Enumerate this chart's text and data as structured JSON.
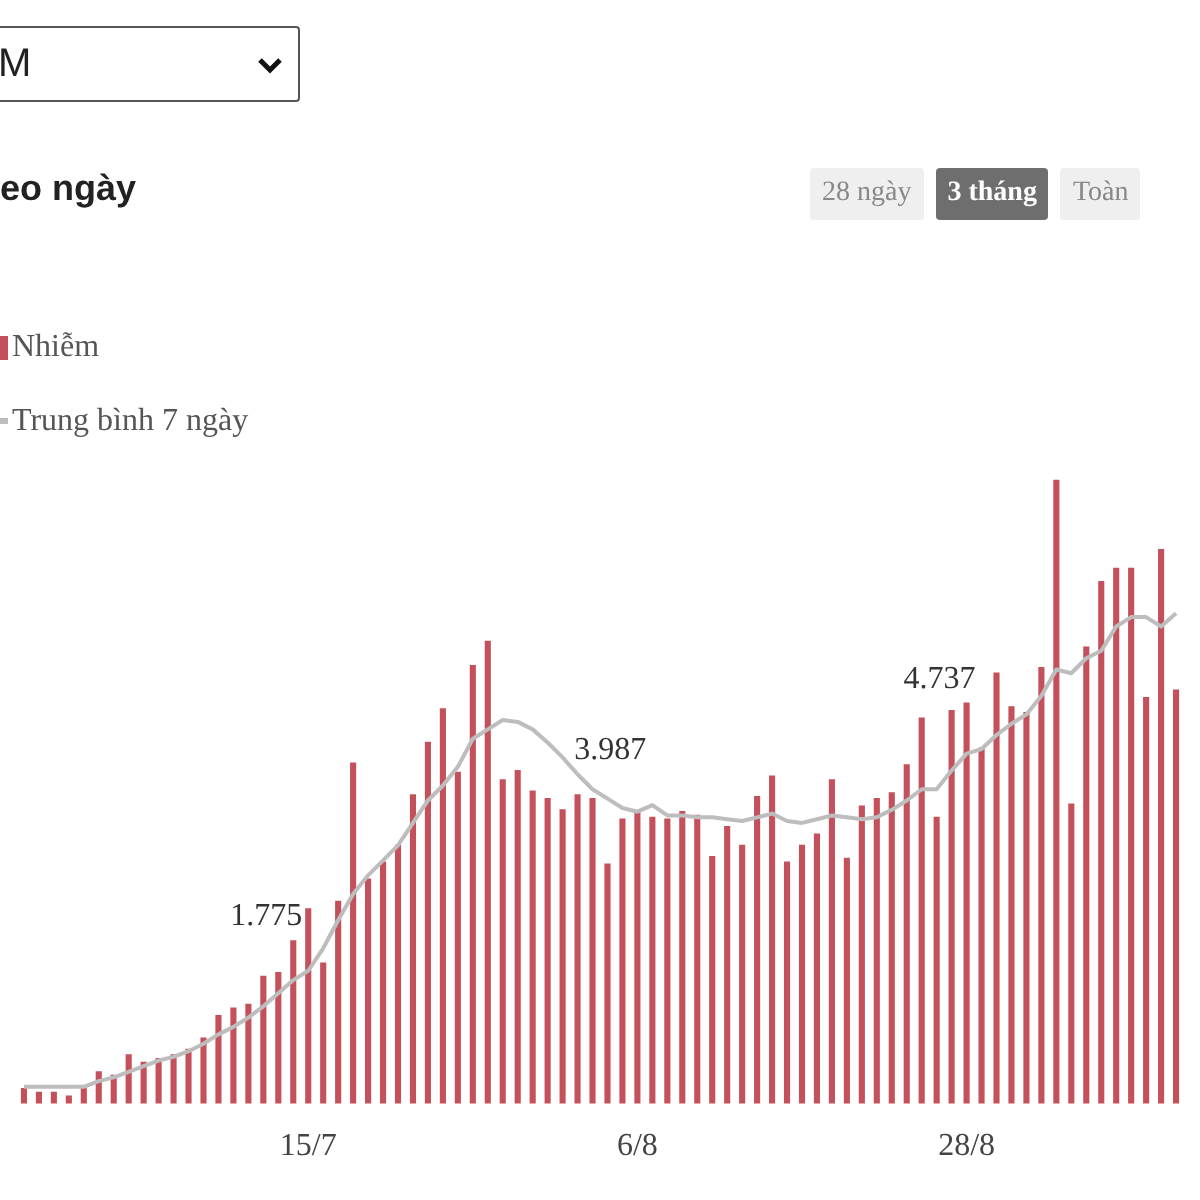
{
  "chart_data": {
    "type": "bar",
    "title": "eo ngày",
    "categories": [
      null,
      null,
      null,
      null,
      null,
      null,
      null,
      null,
      null,
      null,
      null,
      null,
      null,
      null,
      null,
      null,
      null,
      null,
      null,
      "15/7",
      null,
      null,
      null,
      null,
      null,
      null,
      null,
      null,
      null,
      null,
      null,
      null,
      null,
      null,
      null,
      null,
      null,
      null,
      null,
      null,
      null,
      "6/8",
      null,
      null,
      null,
      null,
      null,
      null,
      null,
      null,
      null,
      null,
      null,
      null,
      null,
      null,
      null,
      null,
      null,
      null,
      null,
      null,
      null,
      "28/8",
      null,
      null,
      null,
      null,
      null,
      null,
      null,
      null,
      null,
      null,
      null,
      null,
      null,
      null
    ],
    "series": [
      {
        "name": "Nhiễm",
        "type": "bar",
        "color": "#c4505c",
        "values": [
          200,
          150,
          150,
          100,
          200,
          425,
          375,
          650,
          550,
          600,
          650,
          725,
          875,
          1175,
          1275,
          1325,
          1700,
          1750,
          2175,
          2600,
          1875,
          2700,
          4550,
          3000,
          3225,
          3450,
          4125,
          4825,
          5275,
          4425,
          5850,
          6175,
          4325,
          4450,
          4175,
          4075,
          3925,
          4125,
          4075,
          3200,
          3800,
          3900,
          3825,
          3800,
          3900,
          3850,
          3300,
          3700,
          3450,
          4100,
          4375,
          3225,
          3450,
          3600,
          4325,
          3275,
          3975,
          4075,
          4150,
          4525,
          5150,
          3825,
          5250,
          5350,
          4750,
          5750,
          5300,
          5225,
          5825,
          8325,
          4000,
          6100,
          6975,
          7150,
          7150,
          5425,
          7400,
          5525
        ]
      },
      {
        "name": "Trung bình 7 ngày",
        "type": "line",
        "color": "#bdbdbd",
        "values": [
          225,
          225,
          225,
          225,
          225,
          300,
          350,
          425,
          500,
          575,
          625,
          700,
          800,
          925,
          1025,
          1150,
          1300,
          1475,
          1650,
          1775,
          2075,
          2450,
          2800,
          3050,
          3250,
          3450,
          3750,
          4050,
          4250,
          4500,
          4875,
          5000,
          5125,
          5100,
          5000,
          4825,
          4625,
          4400,
          4200,
          4075,
          3950,
          3900,
          3987,
          3850,
          3850,
          3825,
          3825,
          3800,
          3775,
          3825,
          3875,
          3775,
          3750,
          3800,
          3850,
          3825,
          3800,
          3825,
          3925,
          4050,
          4200,
          4200,
          4450,
          4675,
          4737,
          4925,
          5075,
          5200,
          5450,
          5800,
          5750,
          5950,
          6050,
          6375,
          6500,
          6500,
          6375,
          6550
        ],
        "value_labels": [
          null,
          null,
          null,
          null,
          null,
          null,
          null,
          null,
          null,
          null,
          null,
          null,
          null,
          null,
          null,
          null,
          null,
          null,
          null,
          "1.775",
          null,
          null,
          null,
          null,
          null,
          null,
          null,
          null,
          null,
          null,
          null,
          null,
          null,
          null,
          null,
          null,
          null,
          null,
          null,
          null,
          null,
          null,
          "3.987",
          null,
          null,
          null,
          null,
          null,
          null,
          null,
          null,
          null,
          null,
          null,
          null,
          null,
          null,
          null,
          null,
          null,
          null,
          null,
          null,
          null,
          "4.737",
          null,
          null,
          null,
          null,
          null,
          null,
          null,
          null,
          null,
          null,
          null,
          null,
          null
        ]
      }
    ],
    "legend": "top left",
    "grid": false,
    "marker": "none",
    "tick_labels": "x",
    "annotations": [
      "M",
      "28 ngày",
      "3 tháng",
      "Toàn"
    ]
  }
}
